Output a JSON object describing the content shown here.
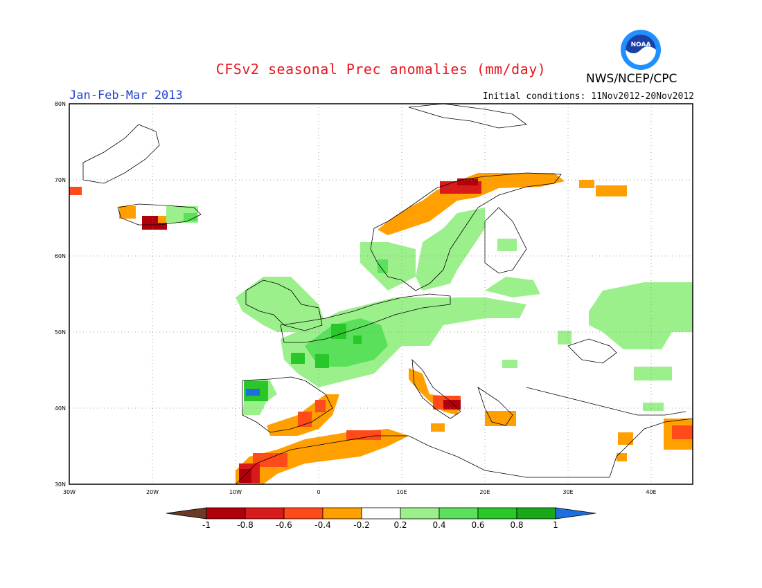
{
  "title": "CFSv2 seasonal Prec anomalies (mm/day)",
  "period": "Jan-Feb-Mar 2013",
  "initial_conditions": "Initial conditions: 11Nov2012-20Nov2012",
  "agency": "NWS/NCEP/CPC",
  "logo_text": "NOAA",
  "map": {
    "x_ticks": [
      "30W",
      "20W",
      "10W",
      "0",
      "10E",
      "20E",
      "30E",
      "40E"
    ],
    "y_ticks": [
      "80N",
      "70N",
      "60N",
      "50N",
      "40N",
      "30N"
    ],
    "lon_range": [
      -30,
      45
    ],
    "lat_range": [
      30,
      80
    ]
  },
  "colorbar": {
    "labels": [
      "-1",
      "-0.8",
      "-0.6",
      "-0.4",
      "-0.2",
      "0.2",
      "0.4",
      "0.6",
      "0.8",
      "1"
    ],
    "colors": [
      "#6b3a25",
      "#b0000c",
      "#d81a1a",
      "#ff4a1a",
      "#ff9f00",
      "#ffffff",
      "#9cf08c",
      "#5ae05a",
      "#28c828",
      "#18a818",
      "#1f6ee0"
    ]
  }
}
